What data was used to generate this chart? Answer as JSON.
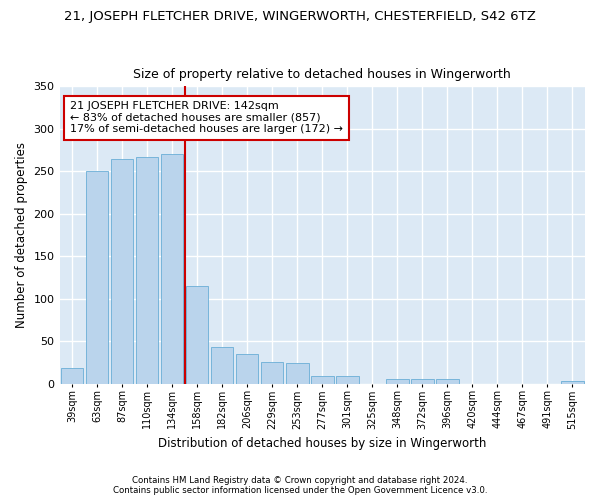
{
  "title": "21, JOSEPH FLETCHER DRIVE, WINGERWORTH, CHESTERFIELD, S42 6TZ",
  "subtitle": "Size of property relative to detached houses in Wingerworth",
  "xlabel": "Distribution of detached houses by size in Wingerworth",
  "ylabel": "Number of detached properties",
  "categories": [
    "39sqm",
    "63sqm",
    "87sqm",
    "110sqm",
    "134sqm",
    "158sqm",
    "182sqm",
    "206sqm",
    "229sqm",
    "253sqm",
    "277sqm",
    "301sqm",
    "325sqm",
    "348sqm",
    "372sqm",
    "396sqm",
    "420sqm",
    "444sqm",
    "467sqm",
    "491sqm",
    "515sqm"
  ],
  "values": [
    18,
    250,
    265,
    267,
    270,
    115,
    43,
    35,
    25,
    24,
    9,
    9,
    0,
    5,
    5,
    5,
    0,
    0,
    0,
    0,
    3
  ],
  "bar_color": "#bad4ec",
  "bar_edge_color": "#6aaed6",
  "bg_color": "#dce9f5",
  "grid_color": "#ffffff",
  "vline_color": "#cc0000",
  "annotation_text": "21 JOSEPH FLETCHER DRIVE: 142sqm\n← 83% of detached houses are smaller (857)\n17% of semi-detached houses are larger (172) →",
  "annotation_box_color": "#ffffff",
  "annotation_box_edge": "#cc0000",
  "footnote1": "Contains HM Land Registry data © Crown copyright and database right 2024.",
  "footnote2": "Contains public sector information licensed under the Open Government Licence v3.0.",
  "ylim": [
    0,
    350
  ],
  "yticks": [
    0,
    50,
    100,
    150,
    200,
    250,
    300,
    350
  ],
  "title_fontsize": 9.5,
  "subtitle_fontsize": 9,
  "fig_bg": "#ffffff"
}
